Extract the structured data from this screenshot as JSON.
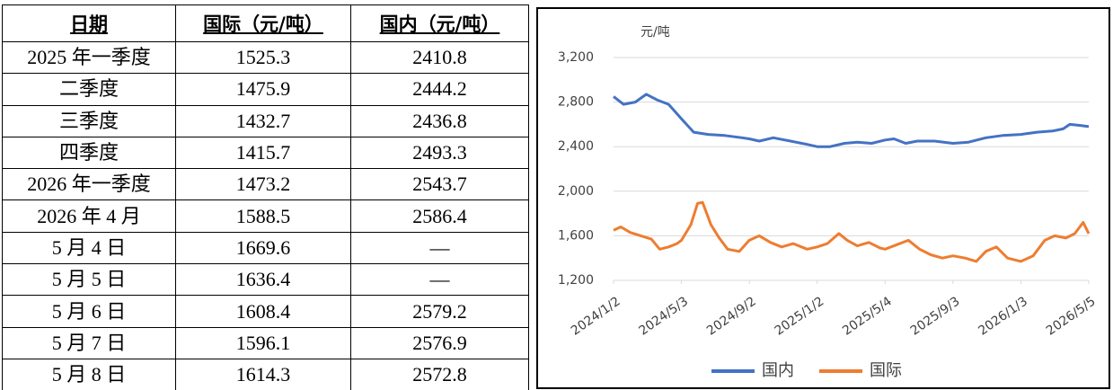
{
  "table": {
    "header": [
      "日期",
      "国际（元/吨）",
      "国内（元/吨）"
    ],
    "rows": [
      [
        "2025 年一季度",
        "1525.3",
        "2410.8"
      ],
      [
        "二季度",
        "1475.9",
        "2444.2"
      ],
      [
        "三季度",
        "1432.7",
        "2436.8"
      ],
      [
        "四季度",
        "1415.7",
        "2493.3"
      ],
      [
        "2026 年一季度",
        "1473.2",
        "2543.7"
      ],
      [
        "2026 年 4 月",
        "1588.5",
        "2586.4"
      ],
      [
        "5 月 4 日",
        "1669.6",
        "—"
      ],
      [
        "5 月 5 日",
        "1636.4",
        "—"
      ],
      [
        "5 月 6 日",
        "1608.4",
        "2579.2"
      ],
      [
        "5 月 7 日",
        "1596.1",
        "2576.9"
      ],
      [
        "5 月 8 日",
        "1614.3",
        "2572.8"
      ]
    ]
  },
  "chart_data": {
    "type": "line",
    "y_label": "元/吨",
    "xlim": [
      "2024/1/2",
      "2026/5/5"
    ],
    "xticks": [
      "2024/1/2",
      "2024/5/3",
      "2024/9/2",
      "2025/1/2",
      "2025/5/4",
      "2025/9/3",
      "2026/1/3",
      "2026/5/5"
    ],
    "ylim": [
      1200,
      3200
    ],
    "yticks": [
      {
        "value": 1200,
        "label": "1,200"
      },
      {
        "value": 1600,
        "label": "1,600"
      },
      {
        "value": 2000,
        "label": "2,000"
      },
      {
        "value": 2400,
        "label": "2,400"
      },
      {
        "value": 2800,
        "label": "2,800"
      },
      {
        "value": 3200,
        "label": "3,200"
      }
    ],
    "grid": true,
    "legend": "bottom",
    "series": [
      {
        "name": "国内",
        "color": "#4472c4",
        "x": [
          "2024/1/2",
          "2024/1/20",
          "2024/2/10",
          "2024/3/1",
          "2024/3/20",
          "2024/4/10",
          "2024/5/3",
          "2024/5/25",
          "2024/6/20",
          "2024/7/20",
          "2024/8/20",
          "2024/9/2",
          "2024/9/20",
          "2024/10/15",
          "2024/11/15",
          "2024/12/15",
          "2025/1/2",
          "2025/1/25",
          "2025/2/20",
          "2025/3/15",
          "2025/4/10",
          "2025/5/4",
          "2025/5/20",
          "2025/6/10",
          "2025/7/1",
          "2025/8/1",
          "2025/9/3",
          "2025/10/1",
          "2025/11/1",
          "2025/12/1",
          "2026/1/3",
          "2026/2/1",
          "2026/3/1",
          "2026/3/20",
          "2026/4/1",
          "2026/4/20",
          "2026/5/5"
        ],
        "values": [
          2850,
          2780,
          2800,
          2870,
          2820,
          2780,
          2650,
          2530,
          2510,
          2500,
          2480,
          2470,
          2450,
          2480,
          2450,
          2420,
          2400,
          2400,
          2430,
          2440,
          2430,
          2460,
          2470,
          2430,
          2450,
          2450,
          2430,
          2440,
          2480,
          2500,
          2510,
          2530,
          2540,
          2560,
          2600,
          2590,
          2580
        ]
      },
      {
        "name": "国际",
        "color": "#ed7d31",
        "x": [
          "2024/1/2",
          "2024/1/15",
          "2024/2/1",
          "2024/2/20",
          "2024/3/10",
          "2024/3/25",
          "2024/4/10",
          "2024/4/25",
          "2024/5/3",
          "2024/5/20",
          "2024/6/1",
          "2024/6/10",
          "2024/6/25",
          "2024/7/10",
          "2024/7/25",
          "2024/8/15",
          "2024/9/2",
          "2024/9/20",
          "2024/10/10",
          "2024/10/30",
          "2024/11/20",
          "2024/12/15",
          "2025/1/2",
          "2025/1/20",
          "2025/2/10",
          "2025/2/25",
          "2025/3/15",
          "2025/4/5",
          "2025/4/25",
          "2025/5/4",
          "2025/5/25",
          "2025/6/15",
          "2025/7/5",
          "2025/7/25",
          "2025/8/15",
          "2025/9/3",
          "2025/9/25",
          "2025/10/15",
          "2025/11/1",
          "2025/11/20",
          "2025/12/10",
          "2026/1/3",
          "2026/1/25",
          "2026/2/15",
          "2026/3/5",
          "2026/3/25",
          "2026/4/10",
          "2026/4/25",
          "2026/5/5"
        ],
        "values": [
          1650,
          1680,
          1630,
          1600,
          1570,
          1480,
          1500,
          1530,
          1560,
          1700,
          1890,
          1900,
          1700,
          1580,
          1480,
          1460,
          1560,
          1600,
          1540,
          1500,
          1530,
          1480,
          1500,
          1530,
          1620,
          1560,
          1510,
          1540,
          1490,
          1480,
          1520,
          1560,
          1480,
          1430,
          1400,
          1420,
          1400,
          1370,
          1460,
          1500,
          1400,
          1370,
          1420,
          1560,
          1600,
          1580,
          1620,
          1720,
          1620
        ]
      }
    ]
  }
}
